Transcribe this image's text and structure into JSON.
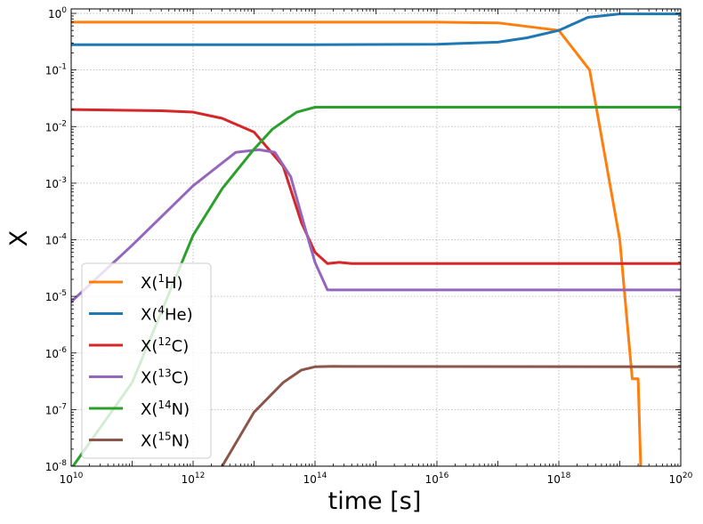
{
  "chart_data": {
    "type": "line",
    "title": "",
    "xlabel": "time [s]",
    "ylabel": "X",
    "xscale": "log",
    "yscale": "log",
    "xlim": [
      10000000000.0,
      1e+20
    ],
    "ylim": [
      1e-08,
      1.2
    ],
    "grid": true,
    "legend_position": "lower-left",
    "x_ticks": [
      10,
      12,
      14,
      16,
      18,
      20
    ],
    "y_ticks": [
      -8,
      -7,
      -6,
      -5,
      -4,
      -3,
      -2,
      -1,
      0
    ],
    "series": [
      {
        "name_base": "X(",
        "name_sup": "1",
        "name_tail": "H)",
        "color": "#ff7f0e",
        "points": [
          [
            10000000000.0,
            0.7
          ],
          [
            100000000000000.0,
            0.7
          ],
          [
            1e+16,
            0.699
          ],
          [
            1e+17,
            0.68
          ],
          [
            1e+18,
            0.5
          ],
          [
            3.2e+18,
            0.1
          ],
          [
            1e+19,
            0.0001
          ],
          [
            1.6e+19,
            3.5e-07
          ],
          [
            2e+19,
            3.5e-07
          ],
          [
            2.2e+19,
            1e-08
          ]
        ]
      },
      {
        "name_base": "X(",
        "name_sup": "4",
        "name_tail": "He)",
        "color": "#1f77b4",
        "points": [
          [
            10000000000.0,
            0.28
          ],
          [
            100000000000000.0,
            0.28
          ],
          [
            1e+16,
            0.285
          ],
          [
            1e+17,
            0.31
          ],
          [
            3e+17,
            0.37
          ],
          [
            1e+18,
            0.5
          ],
          [
            3e+18,
            0.85
          ],
          [
            1e+19,
            0.98
          ],
          [
            1e+20,
            0.98
          ]
        ]
      },
      {
        "name_base": "X(",
        "name_sup": "12",
        "name_tail": "C)",
        "color": "#d62728",
        "points": [
          [
            10000000000.0,
            0.02
          ],
          [
            300000000000.0,
            0.019
          ],
          [
            1000000000000.0,
            0.018
          ],
          [
            3000000000000.0,
            0.014
          ],
          [
            10000000000000.0,
            0.008
          ],
          [
            30000000000000.0,
            0.002
          ],
          [
            60000000000000.0,
            0.0002
          ],
          [
            100000000000000.0,
            6e-05
          ],
          [
            160000000000000.0,
            3.8e-05
          ],
          [
            250000000000000.0,
            4e-05
          ],
          [
            400000000000000.0,
            3.8e-05
          ],
          [
            1e+20,
            3.8e-05
          ]
        ]
      },
      {
        "name_base": "X(",
        "name_sup": "13",
        "name_tail": "C)",
        "color": "#9467bd",
        "points": [
          [
            10000000000.0,
            8e-06
          ],
          [
            100000000000.0,
            8e-05
          ],
          [
            1000000000000.0,
            0.0009
          ],
          [
            5000000000000.0,
            0.0035
          ],
          [
            12000000000000.0,
            0.0039
          ],
          [
            22000000000000.0,
            0.0035
          ],
          [
            40000000000000.0,
            0.0013
          ],
          [
            70000000000000.0,
            0.00015
          ],
          [
            100000000000000.0,
            4e-05
          ],
          [
            160000000000000.0,
            1.3e-05
          ],
          [
            300000000000000.0,
            1.3e-05
          ],
          [
            1e+20,
            1.3e-05
          ]
        ]
      },
      {
        "name_base": "X(",
        "name_sup": "14",
        "name_tail": "N)",
        "color": "#2ca02c",
        "points": [
          [
            10000000000.0,
            9e-09
          ],
          [
            100000000000.0,
            3e-07
          ],
          [
            1000000000000.0,
            0.00012
          ],
          [
            3000000000000.0,
            0.0008
          ],
          [
            10000000000000.0,
            0.004
          ],
          [
            20000000000000.0,
            0.009
          ],
          [
            50000000000000.0,
            0.018
          ],
          [
            100000000000000.0,
            0.022
          ],
          [
            1e+20,
            0.022
          ]
        ]
      },
      {
        "name_base": "X(",
        "name_sup": "15",
        "name_tail": "N)",
        "color": "#8c564b",
        "points": [
          [
            3000000000000.0,
            1e-08
          ],
          [
            10000000000000.0,
            9e-08
          ],
          [
            30000000000000.0,
            3e-07
          ],
          [
            60000000000000.0,
            5e-07
          ],
          [
            100000000000000.0,
            5.7e-07
          ],
          [
            200000000000000.0,
            5.8e-07
          ],
          [
            1e+20,
            5.7e-07
          ]
        ]
      }
    ]
  }
}
